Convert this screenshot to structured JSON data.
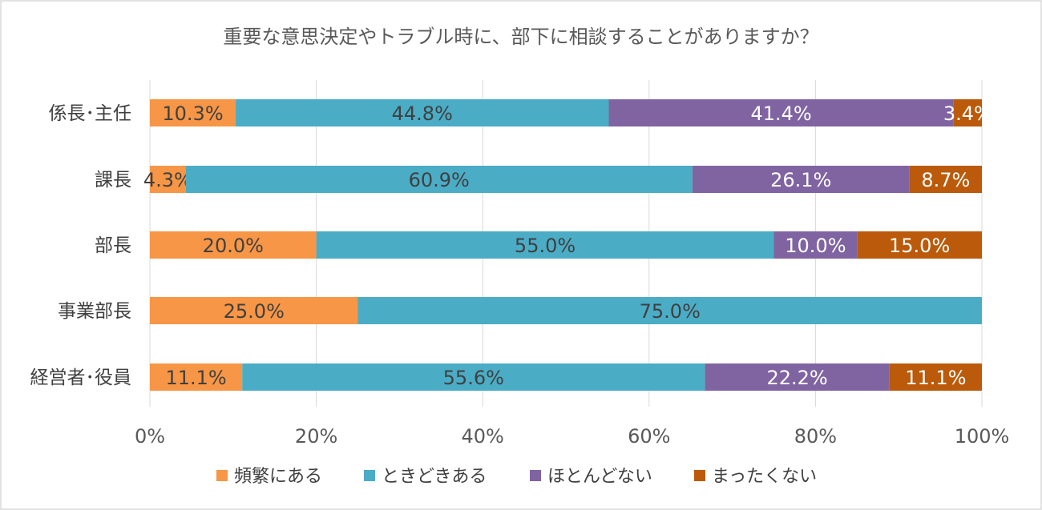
{
  "chart_data": {
    "type": "bar",
    "orientation": "horizontal",
    "stacked": "percent",
    "title": "重要な意思決定やトラブル時に、部下に相談することがありますか？",
    "categories": [
      "係長･主任",
      "課長",
      "部長",
      "事業部長",
      "経営者･役員"
    ],
    "series": [
      {
        "name": "頻繁にある",
        "color": "#f79646",
        "values": [
          10.3,
          4.3,
          20.0,
          25.0,
          11.1
        ],
        "labels": [
          "10.3%",
          "4.3%",
          "20.0%",
          "25.0%",
          "11.1%"
        ]
      },
      {
        "name": "ときどきある",
        "color": "#4bacc6",
        "values": [
          44.8,
          60.9,
          55.0,
          75.0,
          55.6
        ],
        "labels": [
          "44.8%",
          "60.9%",
          "55.0%",
          "75.0%",
          "55.6%"
        ]
      },
      {
        "name": "ほとんどない",
        "color": "#8064a2",
        "values": [
          41.4,
          26.1,
          10.0,
          0,
          22.2
        ],
        "labels": [
          "41.4%",
          "26.1%",
          "10.0%",
          "",
          "22.2%"
        ]
      },
      {
        "name": "まったくない",
        "color": "#c0504d",
        "values": [
          3.4,
          8.7,
          15.0,
          0,
          11.1
        ],
        "labels": [
          "3.4%",
          "8.7%",
          "15.0%",
          "",
          "11.1%"
        ]
      }
    ],
    "x_ticks": [
      "0%",
      "20%",
      "40%",
      "60%",
      "80%",
      "100%"
    ],
    "xlim": [
      0,
      100
    ],
    "grid": true,
    "legend_position": "bottom"
  },
  "colors": {
    "often": "#f79646",
    "sometimes": "#4bacc6",
    "rarely": "#8064a2",
    "never": "#bb5a0a",
    "label_dark": "#404040",
    "label_light": "#ffffff"
  }
}
